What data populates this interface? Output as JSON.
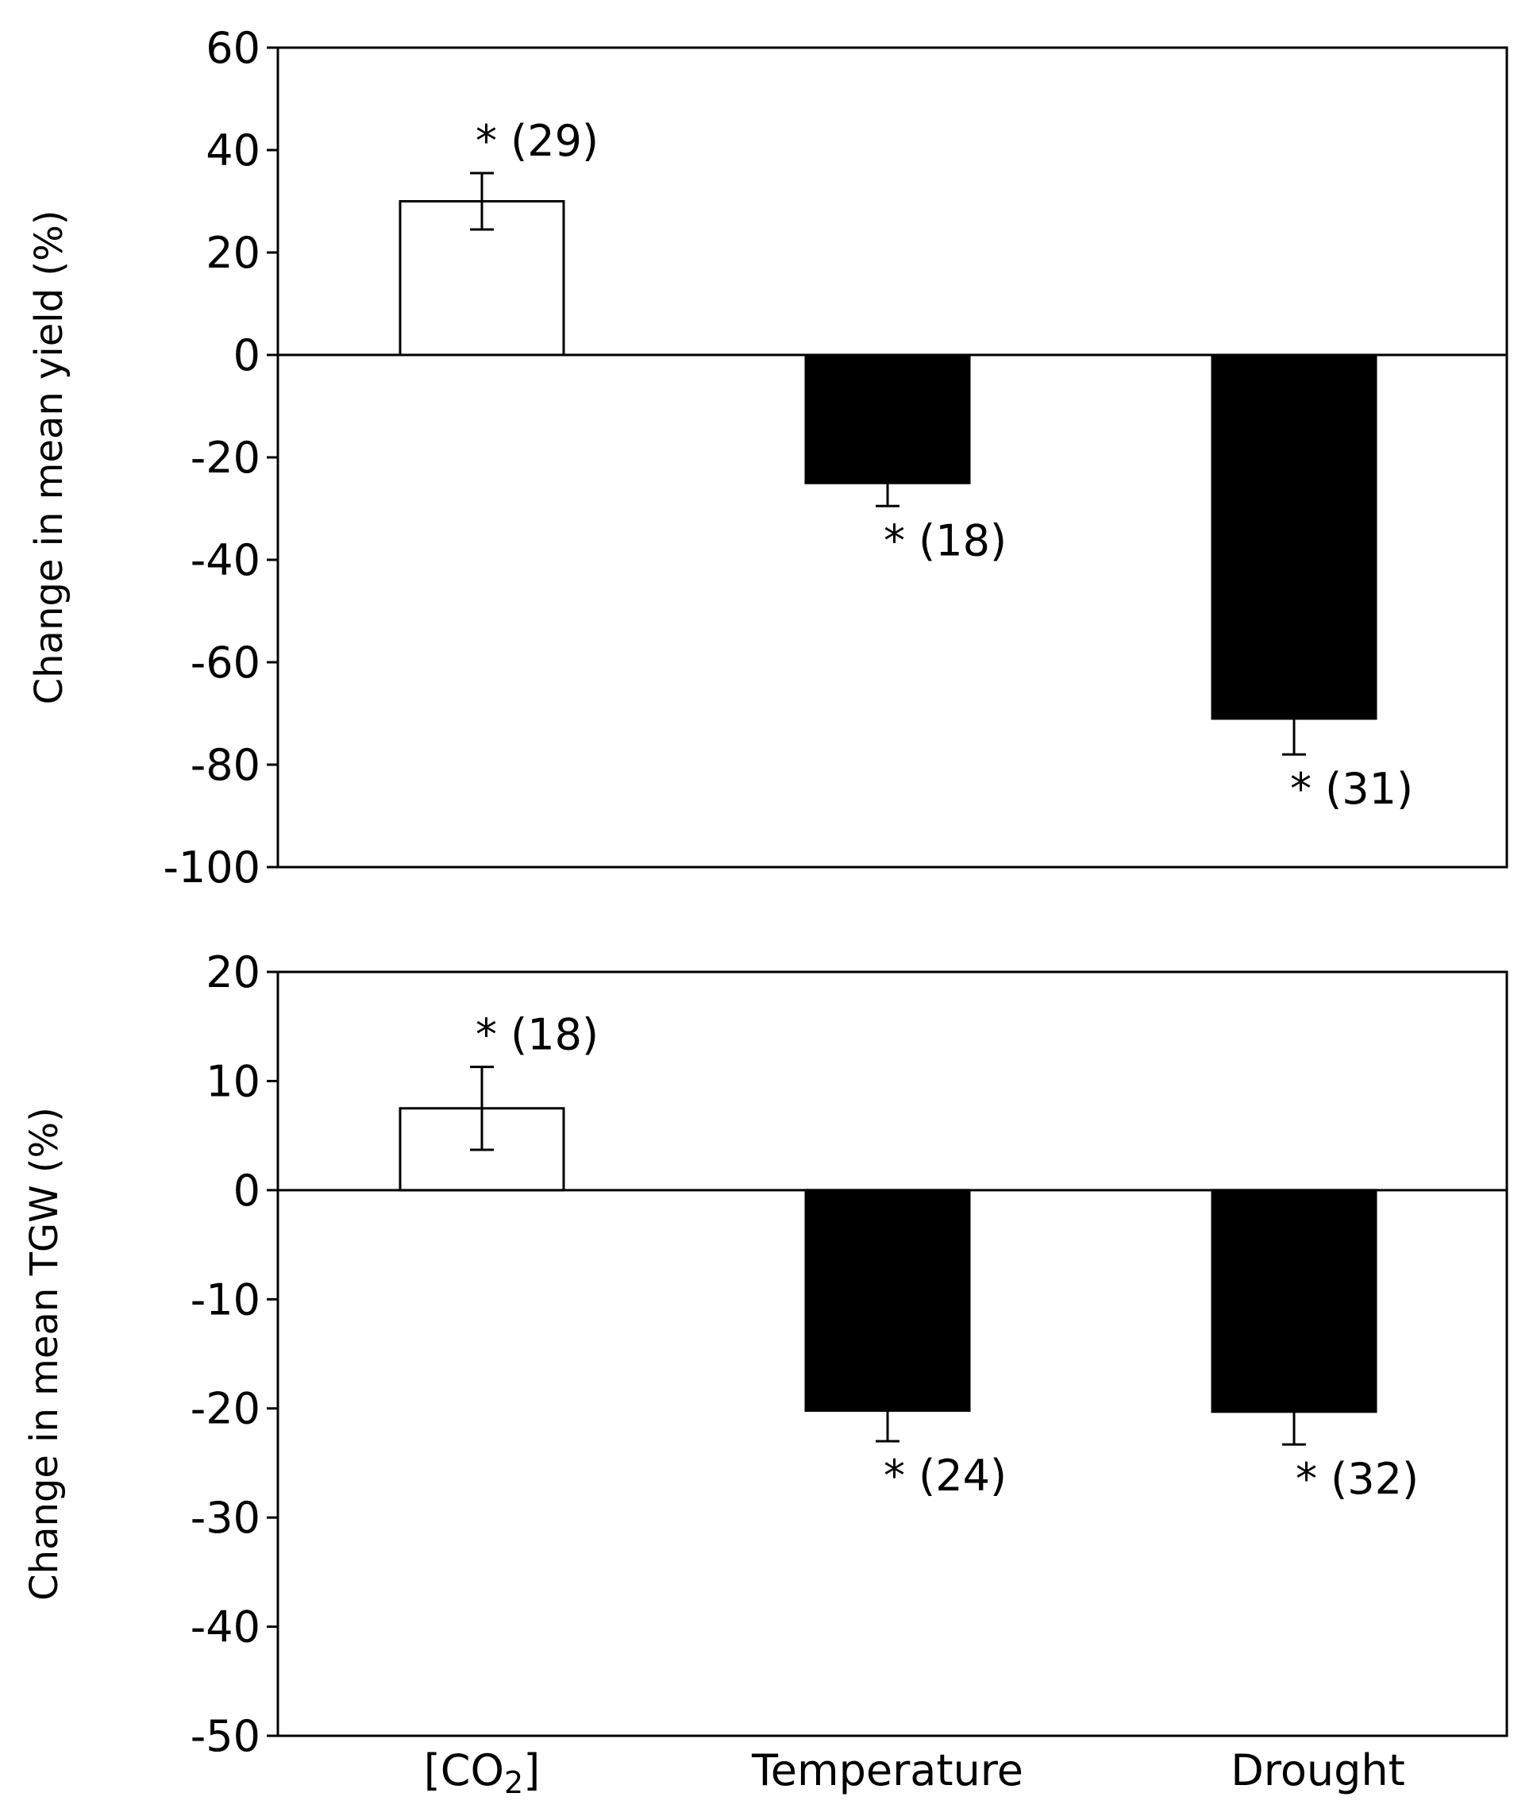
{
  "chart_data": [
    {
      "type": "bar",
      "title": "",
      "xlabel": "",
      "ylabel": "Change in mean yield (%)",
      "ylim": [
        -100,
        60
      ],
      "yticks": [
        60,
        40,
        20,
        0,
        -20,
        -40,
        -60,
        -80,
        -100
      ],
      "grid": false,
      "categories": [
        "[CO2]",
        "Temperature",
        "Drought"
      ],
      "values": [
        30,
        -25,
        -71
      ],
      "error_bars": [
        5.5,
        4.5,
        7
      ],
      "annotations": [
        "* (29)",
        "* (18)",
        "* (31)"
      ],
      "colors": [
        "#ffffff",
        "#000000",
        "#000000"
      ]
    },
    {
      "type": "bar",
      "title": "",
      "xlabel": "",
      "ylabel": "Change in mean TGW (%)",
      "ylim": [
        -50,
        20
      ],
      "yticks": [
        20,
        10,
        0,
        -10,
        -20,
        -30,
        -40,
        -50
      ],
      "grid": false,
      "categories": [
        "[CO2]",
        "Temperature",
        "Drought"
      ],
      "values": [
        7.5,
        -20.2,
        -20.3
      ],
      "error_bars": [
        3.8,
        2.8,
        3
      ],
      "annotations": [
        "* (18)",
        "* (24)",
        "* (32)"
      ],
      "colors": [
        "#ffffff",
        "#000000",
        "#000000"
      ]
    }
  ],
  "x_axis_labels": {
    "co2_prefix": "[CO",
    "co2_subscript": "2",
    "co2_suffix": "]",
    "temperature": "Temperature",
    "drought": "Drought"
  }
}
